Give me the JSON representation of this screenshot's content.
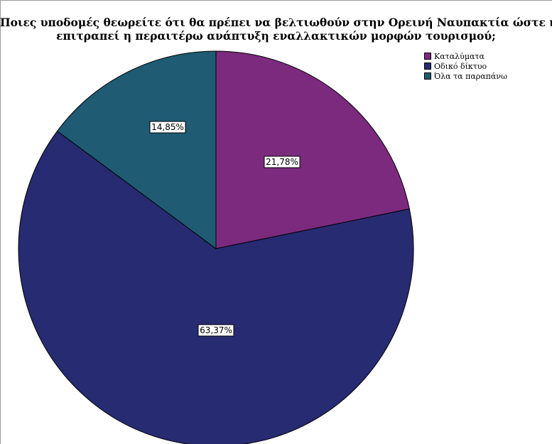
{
  "chart_data": {
    "type": "pie",
    "title_lines": [
      "Ποιες υποδομές θεωρείτε ότι θα πρέπει να βελτιωθούν στην Ορεινή Ναυπακτία ώστε να",
      "επιτραπεί η περαιτέρω ανάπτυξη εναλλακτικών μορφών τουρισμού;"
    ],
    "slices": [
      {
        "name": "Καταλύματα",
        "value": 21.78,
        "label": "21,78%",
        "color": "#7b2a7e"
      },
      {
        "name": "Οδικό δίκτυο",
        "value": 63.37,
        "label": "63,37%",
        "color": "#262b72"
      },
      {
        "name": "Όλα τα παραπάνω",
        "value": 14.85,
        "label": "14,85%",
        "color": "#1f5b73"
      }
    ],
    "legend_position": "top-right"
  }
}
